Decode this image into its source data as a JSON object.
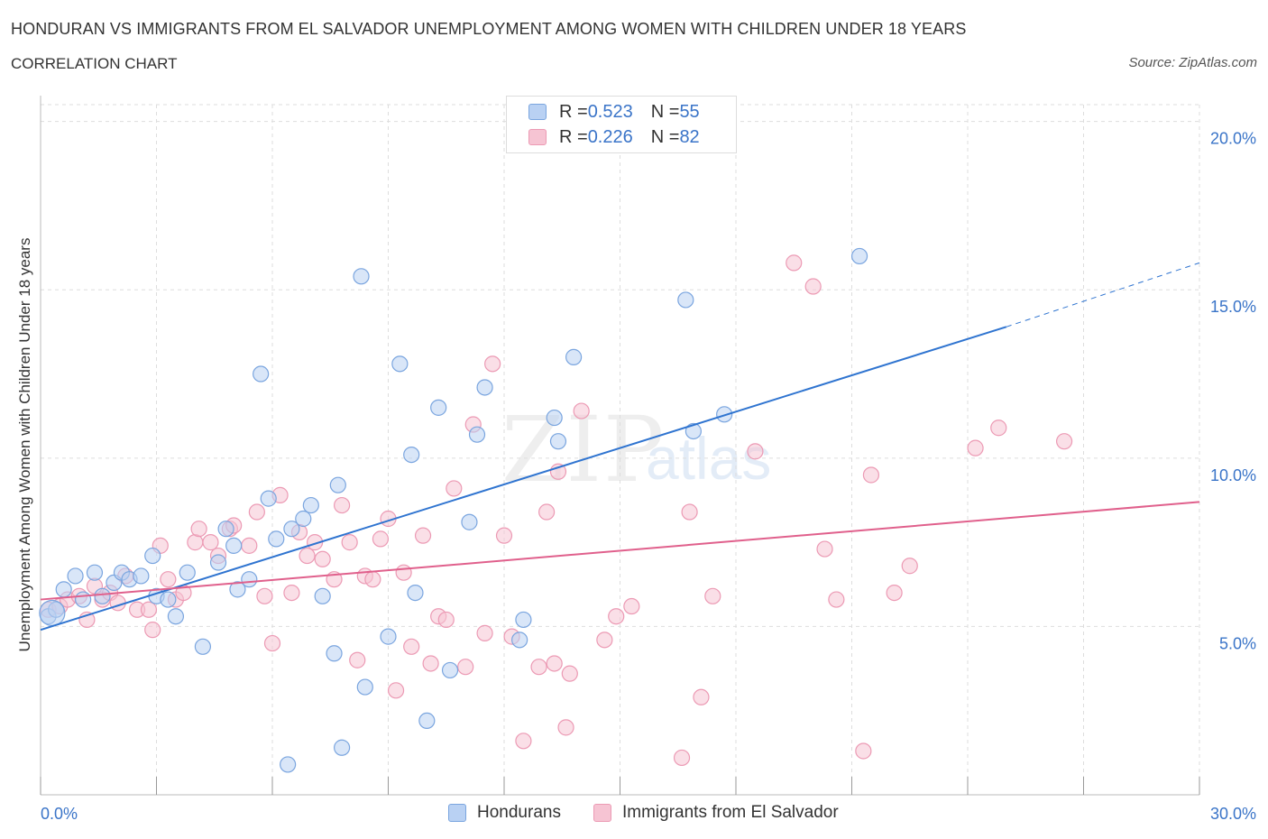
{
  "header": {
    "title": "HONDURAN VS IMMIGRANTS FROM EL SALVADOR UNEMPLOYMENT AMONG WOMEN WITH CHILDREN UNDER 18 YEARS",
    "subtitle": "CORRELATION CHART",
    "source": "Source: ZipAtlas.com"
  },
  "watermark": {
    "zip": "ZIP",
    "atlas": "atlas"
  },
  "legend_top": [
    {
      "r_label": "R = ",
      "r_value": "0.523",
      "n_label": "N = ",
      "n_value": "55"
    },
    {
      "r_label": "R = ",
      "r_value": "0.226",
      "n_label": "N = ",
      "n_value": "82"
    }
  ],
  "legend_bottom": [
    {
      "label": "Hondurans"
    },
    {
      "label": "Immigrants from El Salvador"
    }
  ],
  "colors": {
    "blue_fill": "#b9d1f3",
    "blue_stroke": "#7aa5df",
    "blue_line": "#2f74d0",
    "pink_fill": "#f6c4d3",
    "pink_stroke": "#ec9ab4",
    "pink_line": "#e0608c",
    "axis_text": "#3a74c8",
    "grid": "#dddddd"
  },
  "chart_data": {
    "type": "scatter",
    "title": "HONDURAN VS IMMIGRANTS FROM EL SALVADOR UNEMPLOYMENT AMONG WOMEN WITH CHILDREN UNDER 18 YEARS",
    "xlabel": "",
    "ylabel": "Unemployment Among Women with Children Under 18 years",
    "xlim": [
      0,
      30
    ],
    "ylim": [
      0,
      20.5
    ],
    "x_tick_labels": [
      "0.0%",
      "30.0%"
    ],
    "y_ticks": [
      5,
      10,
      15,
      20
    ],
    "y_tick_labels": [
      "5.0%",
      "10.0%",
      "15.0%",
      "20.0%"
    ],
    "grid": true,
    "legend_position": "top-center",
    "series": [
      {
        "name": "Hondurans",
        "color": "#b9d1f3",
        "trend": {
          "x": [
            0,
            25
          ],
          "y": [
            4.9,
            13.9
          ],
          "dashed_extension": {
            "x": [
              25,
              30
            ],
            "y": [
              13.9,
              15.8
            ]
          }
        },
        "points": [
          [
            0.2,
            5.3
          ],
          [
            0.4,
            5.5
          ],
          [
            0.6,
            6.1
          ],
          [
            0.9,
            6.5
          ],
          [
            1.1,
            5.8
          ],
          [
            1.4,
            6.6
          ],
          [
            1.6,
            5.9
          ],
          [
            1.9,
            6.3
          ],
          [
            2.1,
            6.6
          ],
          [
            2.3,
            6.4
          ],
          [
            2.6,
            6.5
          ],
          [
            2.9,
            7.1
          ],
          [
            3.0,
            5.9
          ],
          [
            3.3,
            5.8
          ],
          [
            3.5,
            5.3
          ],
          [
            3.8,
            6.6
          ],
          [
            4.2,
            4.4
          ],
          [
            4.6,
            6.9
          ],
          [
            4.8,
            7.9
          ],
          [
            5.0,
            7.4
          ],
          [
            5.1,
            6.1
          ],
          [
            5.4,
            6.4
          ],
          [
            5.7,
            12.5
          ],
          [
            5.9,
            8.8
          ],
          [
            6.1,
            7.6
          ],
          [
            6.4,
            0.9
          ],
          [
            6.5,
            7.9
          ],
          [
            6.8,
            8.2
          ],
          [
            7.0,
            8.6
          ],
          [
            7.3,
            5.9
          ],
          [
            7.6,
            4.2
          ],
          [
            7.7,
            9.2
          ],
          [
            7.8,
            1.4
          ],
          [
            8.3,
            15.4
          ],
          [
            8.4,
            3.2
          ],
          [
            9.0,
            4.7
          ],
          [
            9.3,
            12.8
          ],
          [
            9.6,
            10.1
          ],
          [
            9.7,
            6.0
          ],
          [
            10.0,
            2.2
          ],
          [
            10.3,
            11.5
          ],
          [
            10.6,
            3.7
          ],
          [
            11.1,
            8.1
          ],
          [
            11.3,
            10.7
          ],
          [
            11.5,
            12.1
          ],
          [
            12.4,
            4.6
          ],
          [
            12.5,
            5.2
          ],
          [
            13.3,
            11.2
          ],
          [
            13.4,
            10.5
          ],
          [
            13.8,
            13.0
          ],
          [
            16.7,
            14.7
          ],
          [
            16.9,
            10.8
          ],
          [
            17.7,
            11.3
          ],
          [
            21.2,
            16.0
          ],
          [
            0.3,
            5.4
          ]
        ]
      },
      {
        "name": "Immigrants from El Salvador",
        "color": "#f6c4d3",
        "trend": {
          "x": [
            0,
            30
          ],
          "y": [
            5.8,
            8.7
          ]
        },
        "points": [
          [
            0.2,
            5.5
          ],
          [
            0.5,
            5.6
          ],
          [
            0.7,
            5.8
          ],
          [
            1.0,
            5.9
          ],
          [
            1.2,
            5.2
          ],
          [
            1.4,
            6.2
          ],
          [
            1.6,
            5.8
          ],
          [
            1.8,
            6.0
          ],
          [
            2.0,
            5.7
          ],
          [
            2.2,
            6.5
          ],
          [
            2.5,
            5.5
          ],
          [
            2.8,
            5.5
          ],
          [
            2.9,
            4.9
          ],
          [
            3.1,
            7.4
          ],
          [
            3.3,
            6.4
          ],
          [
            3.5,
            5.8
          ],
          [
            3.7,
            6.0
          ],
          [
            4.0,
            7.5
          ],
          [
            4.1,
            7.9
          ],
          [
            4.4,
            7.5
          ],
          [
            4.6,
            7.1
          ],
          [
            4.9,
            7.9
          ],
          [
            5.0,
            8.0
          ],
          [
            5.4,
            7.4
          ],
          [
            5.6,
            8.4
          ],
          [
            5.8,
            5.9
          ],
          [
            6.0,
            4.5
          ],
          [
            6.2,
            8.9
          ],
          [
            6.5,
            6.0
          ],
          [
            6.7,
            7.8
          ],
          [
            6.9,
            7.1
          ],
          [
            7.1,
            7.5
          ],
          [
            7.3,
            7.0
          ],
          [
            7.6,
            6.4
          ],
          [
            7.8,
            8.6
          ],
          [
            8.0,
            7.5
          ],
          [
            8.2,
            4.0
          ],
          [
            8.4,
            6.5
          ],
          [
            8.6,
            6.4
          ],
          [
            8.8,
            7.6
          ],
          [
            9.0,
            8.2
          ],
          [
            9.2,
            3.1
          ],
          [
            9.4,
            6.6
          ],
          [
            9.6,
            4.4
          ],
          [
            9.9,
            7.7
          ],
          [
            10.1,
            3.9
          ],
          [
            10.3,
            5.3
          ],
          [
            10.5,
            5.2
          ],
          [
            10.7,
            9.1
          ],
          [
            11.0,
            3.8
          ],
          [
            11.2,
            11.0
          ],
          [
            11.5,
            4.8
          ],
          [
            11.7,
            12.8
          ],
          [
            12.0,
            7.7
          ],
          [
            12.2,
            4.7
          ],
          [
            12.5,
            1.6
          ],
          [
            12.9,
            3.8
          ],
          [
            13.1,
            8.4
          ],
          [
            13.3,
            3.9
          ],
          [
            13.4,
            9.6
          ],
          [
            13.6,
            2.0
          ],
          [
            13.7,
            3.6
          ],
          [
            14.0,
            11.4
          ],
          [
            14.6,
            4.6
          ],
          [
            14.9,
            5.3
          ],
          [
            15.3,
            5.6
          ],
          [
            16.6,
            1.1
          ],
          [
            16.8,
            8.4
          ],
          [
            17.1,
            2.9
          ],
          [
            17.4,
            5.9
          ],
          [
            18.5,
            10.2
          ],
          [
            19.5,
            15.8
          ],
          [
            20.0,
            15.1
          ],
          [
            20.3,
            7.3
          ],
          [
            20.6,
            5.8
          ],
          [
            21.3,
            1.3
          ],
          [
            21.5,
            9.5
          ],
          [
            22.1,
            6.0
          ],
          [
            22.5,
            6.8
          ],
          [
            24.2,
            10.3
          ],
          [
            24.8,
            10.9
          ],
          [
            26.5,
            10.5
          ]
        ]
      }
    ]
  }
}
